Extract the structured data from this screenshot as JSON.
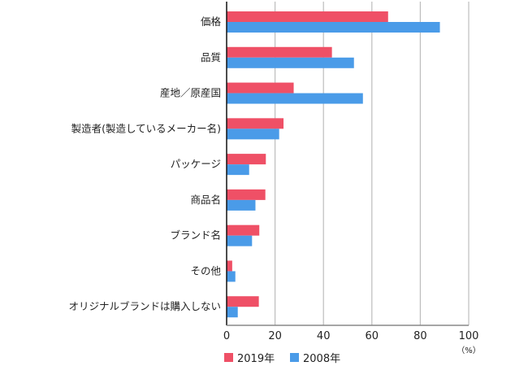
{
  "chart_data": {
    "type": "bar",
    "orientation": "horizontal",
    "categories": [
      "価格",
      "品質",
      "産地／原産国",
      "製造者(製造しているメーカー名)",
      "パッケージ",
      "商品名",
      "ブランド名",
      "その他",
      "オリジナルブランドは購入しない"
    ],
    "series": [
      {
        "name": "2019年",
        "color": "#ef5066",
        "values": [
          66.7,
          43.5,
          27.7,
          23.5,
          16.2,
          16.0,
          13.5,
          2.3,
          13.3
        ]
      },
      {
        "name": "2008年",
        "color": "#4a9be8",
        "values": [
          88.1,
          52.6,
          56.3,
          21.7,
          9.3,
          11.9,
          10.5,
          3.6,
          4.6
        ]
      }
    ],
    "xlim": [
      0,
      100
    ],
    "xticks": [
      "0",
      "20",
      "40",
      "60",
      "80",
      "100"
    ],
    "xunit": "（%）",
    "grid": true,
    "legend_position": "bottom-left",
    "title": "",
    "xlabel": "",
    "ylabel": ""
  }
}
